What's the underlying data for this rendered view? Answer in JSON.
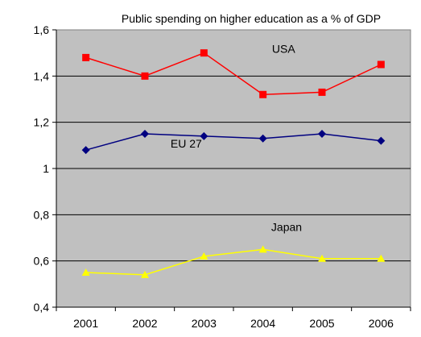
{
  "chart_data": {
    "type": "line",
    "title": "Public spending on higher education as a % of GDP",
    "xlabel": "",
    "ylabel": "",
    "x": [
      "2001",
      "2002",
      "2003",
      "2004",
      "2005",
      "2006"
    ],
    "ylim": [
      0.4,
      1.6
    ],
    "yticks": [
      "0,4",
      "0,6",
      "0,8",
      "1",
      "1,2",
      "1,4",
      "1,6"
    ],
    "ytick_values": [
      0.4,
      0.6,
      0.8,
      1.0,
      1.2,
      1.4,
      1.6
    ],
    "grid": "horizontal",
    "plot_background": "#c0c0c0",
    "series": [
      {
        "name": "USA",
        "values": [
          1.48,
          1.4,
          1.5,
          1.32,
          1.33,
          1.45
        ],
        "color": "#ff0000",
        "marker": "square"
      },
      {
        "name": "EU 27",
        "values": [
          1.08,
          1.15,
          1.14,
          1.13,
          1.15,
          1.12
        ],
        "color": "#000080",
        "marker": "diamond"
      },
      {
        "name": "Japan",
        "values": [
          0.55,
          0.54,
          0.62,
          0.65,
          0.61,
          0.61
        ],
        "color": "#ffff00",
        "marker": "triangle"
      }
    ]
  }
}
